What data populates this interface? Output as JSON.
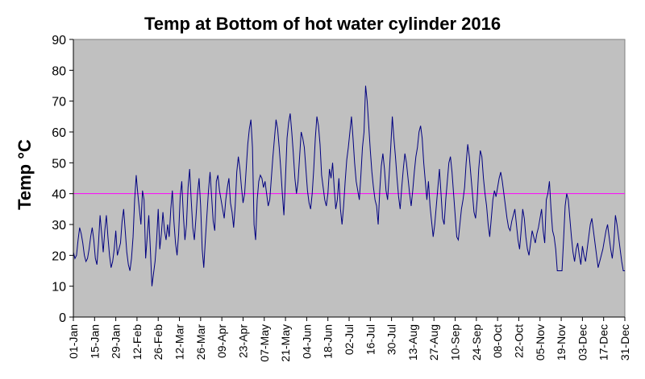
{
  "chart_data": {
    "type": "line",
    "title": "Temp at Bottom of hot water cylinder 2016",
    "xlabel": "",
    "ylabel": "Temp °C",
    "ylim": [
      0,
      90
    ],
    "yticks": [
      0,
      10,
      20,
      30,
      40,
      50,
      60,
      70,
      80,
      90
    ],
    "grid": false,
    "legend": "none",
    "x_start_label": "01-Jan",
    "x_tick_labels": [
      "01-Jan",
      "15-Jan",
      "29-Jan",
      "12-Feb",
      "26-Feb",
      "12-Mar",
      "26-Mar",
      "09-Apr",
      "23-Apr",
      "07-May",
      "21-May",
      "04-Jun",
      "18-Jun",
      "02-Jul",
      "16-Jul",
      "30-Jul",
      "13-Aug",
      "27-Aug",
      "10-Sep",
      "24-Sep",
      "08-Oct",
      "22-Oct",
      "05-Nov",
      "19-Nov",
      "03-Dec",
      "17-Dec",
      "31-Dec"
    ],
    "reference_line": {
      "value": 40,
      "color": "#ff00ff"
    },
    "series": [
      {
        "color": "#000080",
        "values": [
          21,
          19,
          20,
          25,
          29,
          27,
          24,
          20,
          18,
          19,
          22,
          26,
          29,
          25,
          19,
          17,
          24,
          33,
          27,
          21,
          28,
          33,
          26,
          20,
          16,
          18,
          22,
          28,
          20,
          22,
          24,
          31,
          35,
          28,
          21,
          17,
          15,
          19,
          26,
          38,
          46,
          40,
          35,
          30,
          41,
          38,
          19,
          26,
          33,
          22,
          10,
          14,
          18,
          25,
          35,
          22,
          27,
          34,
          28,
          25,
          30,
          26,
          35,
          41,
          31,
          24,
          20,
          27,
          39,
          44,
          33,
          25,
          30,
          42,
          48,
          38,
          29,
          25,
          32,
          40,
          45,
          36,
          22,
          16,
          25,
          33,
          41,
          47,
          39,
          31,
          28,
          44,
          46,
          41,
          38,
          35,
          32,
          38,
          42,
          45,
          37,
          34,
          29,
          36,
          47,
          52,
          48,
          42,
          37,
          40,
          48,
          56,
          61,
          64,
          55,
          30,
          25,
          38,
          44,
          46,
          45,
          42,
          44,
          40,
          36,
          38,
          45,
          52,
          58,
          64,
          61,
          55,
          48,
          40,
          33,
          45,
          58,
          63,
          66,
          60,
          53,
          45,
          40,
          44,
          52,
          60,
          58,
          55,
          48,
          41,
          37,
          35,
          40,
          48,
          58,
          65,
          62,
          56,
          46,
          42,
          38,
          36,
          40,
          48,
          45,
          50,
          42,
          35,
          38,
          45,
          35,
          30,
          36,
          44,
          51,
          55,
          60,
          65,
          58,
          50,
          44,
          41,
          38,
          46,
          55,
          60,
          75,
          70,
          62,
          54,
          47,
          42,
          38,
          36,
          30,
          41,
          49,
          53,
          48,
          41,
          38,
          46,
          55,
          65,
          58,
          52,
          45,
          39,
          35,
          42,
          48,
          53,
          50,
          45,
          40,
          36,
          41,
          47,
          52,
          55,
          60,
          62,
          58,
          50,
          44,
          38,
          44,
          36,
          31,
          26,
          30,
          36,
          42,
          48,
          40,
          32,
          30,
          38,
          44,
          50,
          52,
          47,
          40,
          33,
          26,
          25,
          30,
          35,
          38,
          42,
          50,
          56,
          52,
          46,
          40,
          34,
          32,
          38,
          48,
          54,
          52,
          45,
          40,
          36,
          30,
          26,
          32,
          38,
          41,
          39,
          42,
          45,
          47,
          44,
          40,
          36,
          32,
          29,
          28,
          31,
          33,
          35,
          30,
          25,
          22,
          28,
          35,
          32,
          26,
          22,
          20,
          24,
          28,
          26,
          24,
          27,
          29,
          32,
          35,
          28,
          24,
          38,
          40,
          44,
          35,
          28,
          26,
          22,
          15,
          15,
          15,
          15,
          25,
          36,
          40,
          38,
          32,
          26,
          21,
          18,
          22,
          24,
          20,
          17,
          23,
          20,
          18,
          22,
          26,
          30,
          32,
          28,
          24,
          20,
          16,
          18,
          20,
          22,
          25,
          28,
          30,
          26,
          22,
          19,
          24,
          33,
          30,
          26,
          22,
          18,
          15,
          15
        ]
      }
    ]
  }
}
